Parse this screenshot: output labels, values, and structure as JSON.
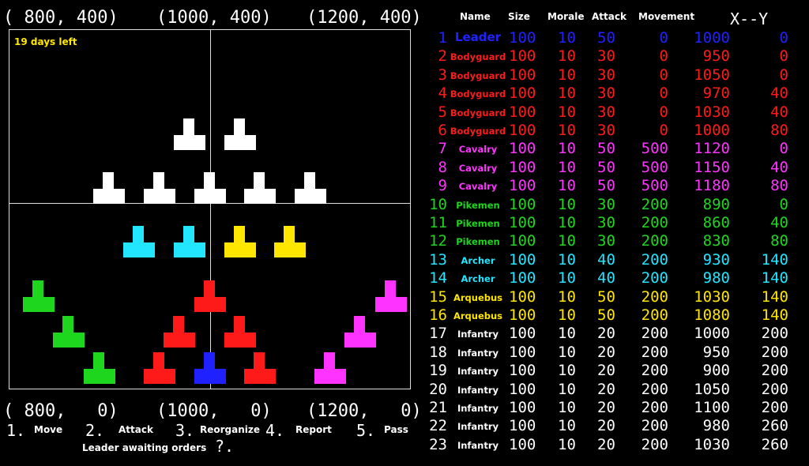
{
  "map": {
    "coords_top": [
      "( 800, 400)",
      "(1000, 400)",
      "(1200, 400)"
    ],
    "coords_bottom": [
      "( 800,   0)",
      "(1000,   0)",
      "(1200,   0)"
    ],
    "days_left": "19 days left"
  },
  "colors": {
    "leader": "#1f22ff",
    "bodyguard": "#ff1a1a",
    "cavalry": "#ff33ff",
    "pikemen": "#1fd61f",
    "archer": "#22e5ff",
    "arquebus": "#ffe600",
    "infantry": "#ffffff"
  },
  "menu": {
    "items": [
      {
        "num": "1.",
        "label": "Move"
      },
      {
        "num": "2.",
        "label": "Attack"
      },
      {
        "num": "3.",
        "label": "Reorganize"
      },
      {
        "num": "4.",
        "label": "Report"
      },
      {
        "num": "5.",
        "label": "Pass"
      }
    ],
    "prompt": "Leader awaiting orders",
    "prompt_mark": "?."
  },
  "table": {
    "headers": {
      "name": "Name",
      "size": "Size",
      "morale": "Morale",
      "attack": "Attack",
      "movement": "Movement",
      "xy": "X--Y"
    },
    "rows": [
      {
        "num": "1",
        "name": "Leader",
        "type": "leader",
        "size": "100",
        "morale": "10",
        "attack": "50",
        "movement": "0",
        "x": "1000",
        "y": "0"
      },
      {
        "num": "2",
        "name": "Bodyguard",
        "type": "bodyguard",
        "size": "100",
        "morale": "10",
        "attack": "30",
        "movement": "0",
        "x": "950",
        "y": "0"
      },
      {
        "num": "3",
        "name": "Bodyguard",
        "type": "bodyguard",
        "size": "100",
        "morale": "10",
        "attack": "30",
        "movement": "0",
        "x": "1050",
        "y": "0"
      },
      {
        "num": "4",
        "name": "Bodyguard",
        "type": "bodyguard",
        "size": "100",
        "morale": "10",
        "attack": "30",
        "movement": "0",
        "x": "970",
        "y": "40"
      },
      {
        "num": "5",
        "name": "Bodyguard",
        "type": "bodyguard",
        "size": "100",
        "morale": "10",
        "attack": "30",
        "movement": "0",
        "x": "1030",
        "y": "40"
      },
      {
        "num": "6",
        "name": "Bodyguard",
        "type": "bodyguard",
        "size": "100",
        "morale": "10",
        "attack": "30",
        "movement": "0",
        "x": "1000",
        "y": "80"
      },
      {
        "num": "7",
        "name": "Cavalry",
        "type": "cavalry",
        "size": "100",
        "morale": "10",
        "attack": "50",
        "movement": "500",
        "x": "1120",
        "y": "0"
      },
      {
        "num": "8",
        "name": "Cavalry",
        "type": "cavalry",
        "size": "100",
        "morale": "10",
        "attack": "50",
        "movement": "500",
        "x": "1150",
        "y": "40"
      },
      {
        "num": "9",
        "name": "Cavalry",
        "type": "cavalry",
        "size": "100",
        "morale": "10",
        "attack": "50",
        "movement": "500",
        "x": "1180",
        "y": "80"
      },
      {
        "num": "10",
        "name": "Pikemen",
        "type": "pikemen",
        "size": "100",
        "morale": "10",
        "attack": "30",
        "movement": "200",
        "x": "890",
        "y": "0"
      },
      {
        "num": "11",
        "name": "Pikemen",
        "type": "pikemen",
        "size": "100",
        "morale": "10",
        "attack": "30",
        "movement": "200",
        "x": "860",
        "y": "40"
      },
      {
        "num": "12",
        "name": "Pikemen",
        "type": "pikemen",
        "size": "100",
        "morale": "10",
        "attack": "30",
        "movement": "200",
        "x": "830",
        "y": "80"
      },
      {
        "num": "13",
        "name": "Archer",
        "type": "archer",
        "size": "100",
        "morale": "10",
        "attack": "40",
        "movement": "200",
        "x": "930",
        "y": "140"
      },
      {
        "num": "14",
        "name": "Archer",
        "type": "archer",
        "size": "100",
        "morale": "10",
        "attack": "40",
        "movement": "200",
        "x": "980",
        "y": "140"
      },
      {
        "num": "15",
        "name": "Arquebus",
        "type": "arquebus",
        "size": "100",
        "morale": "10",
        "attack": "50",
        "movement": "200",
        "x": "1030",
        "y": "140"
      },
      {
        "num": "16",
        "name": "Arquebus",
        "type": "arquebus",
        "size": "100",
        "morale": "10",
        "attack": "50",
        "movement": "200",
        "x": "1080",
        "y": "140"
      },
      {
        "num": "17",
        "name": "Infantry",
        "type": "infantry",
        "size": "100",
        "morale": "10",
        "attack": "20",
        "movement": "200",
        "x": "1000",
        "y": "200"
      },
      {
        "num": "18",
        "name": "Infantry",
        "type": "infantry",
        "size": "100",
        "morale": "10",
        "attack": "20",
        "movement": "200",
        "x": "950",
        "y": "200"
      },
      {
        "num": "19",
        "name": "Infantry",
        "type": "infantry",
        "size": "100",
        "morale": "10",
        "attack": "20",
        "movement": "200",
        "x": "900",
        "y": "200"
      },
      {
        "num": "20",
        "name": "Infantry",
        "type": "infantry",
        "size": "100",
        "morale": "10",
        "attack": "20",
        "movement": "200",
        "x": "1050",
        "y": "200"
      },
      {
        "num": "21",
        "name": "Infantry",
        "type": "infantry",
        "size": "100",
        "morale": "10",
        "attack": "20",
        "movement": "200",
        "x": "1100",
        "y": "200"
      },
      {
        "num": "22",
        "name": "Infantry",
        "type": "infantry",
        "size": "100",
        "morale": "10",
        "attack": "20",
        "movement": "200",
        "x": "980",
        "y": "260"
      },
      {
        "num": "23",
        "name": "Infantry",
        "type": "infantry",
        "size": "100",
        "morale": "10",
        "attack": "20",
        "movement": "200",
        "x": "1030",
        "y": "260"
      }
    ]
  }
}
